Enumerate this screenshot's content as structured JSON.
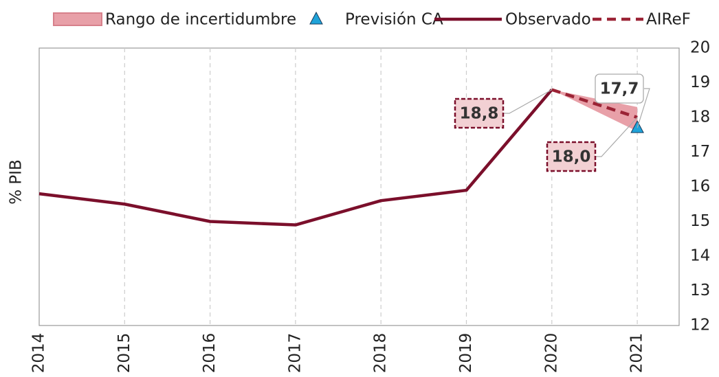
{
  "chart_data": {
    "type": "line",
    "y_label": "% PIB",
    "categories": [
      "2014",
      "2015",
      "2016",
      "2017",
      "2018",
      "2019",
      "2020",
      "2021"
    ],
    "ylim": [
      12,
      20
    ],
    "yticks": [
      12,
      13,
      14,
      15,
      16,
      17,
      18,
      19,
      20
    ],
    "y_axis_side": "right",
    "x_grid": true,
    "series": [
      {
        "name": "Rango de incertidumbre",
        "kind": "band",
        "color": "#e8a0a8",
        "lower": [
          null,
          null,
          null,
          null,
          null,
          null,
          18.8,
          17.6
        ],
        "upper": [
          null,
          null,
          null,
          null,
          null,
          null,
          18.8,
          18.3
        ]
      },
      {
        "name": "Previsión CA",
        "kind": "marker",
        "color": "#1fa3d9",
        "values": [
          null,
          null,
          null,
          null,
          null,
          null,
          null,
          17.7
        ],
        "value_labels": [
          null,
          null,
          null,
          null,
          null,
          null,
          null,
          "17,7"
        ]
      },
      {
        "name": "Observado",
        "kind": "line",
        "color": "#7b0f2b",
        "values": [
          15.8,
          15.5,
          15.0,
          14.9,
          15.6,
          15.9,
          18.8,
          null
        ],
        "value_labels": [
          null,
          null,
          null,
          null,
          null,
          null,
          "18,8",
          null
        ]
      },
      {
        "name": "AIReF",
        "kind": "dashed",
        "color": "#9b2335",
        "values": [
          null,
          null,
          null,
          null,
          null,
          null,
          18.8,
          18.0
        ],
        "value_labels": [
          null,
          null,
          null,
          null,
          null,
          null,
          null,
          "18,0"
        ]
      }
    ]
  }
}
